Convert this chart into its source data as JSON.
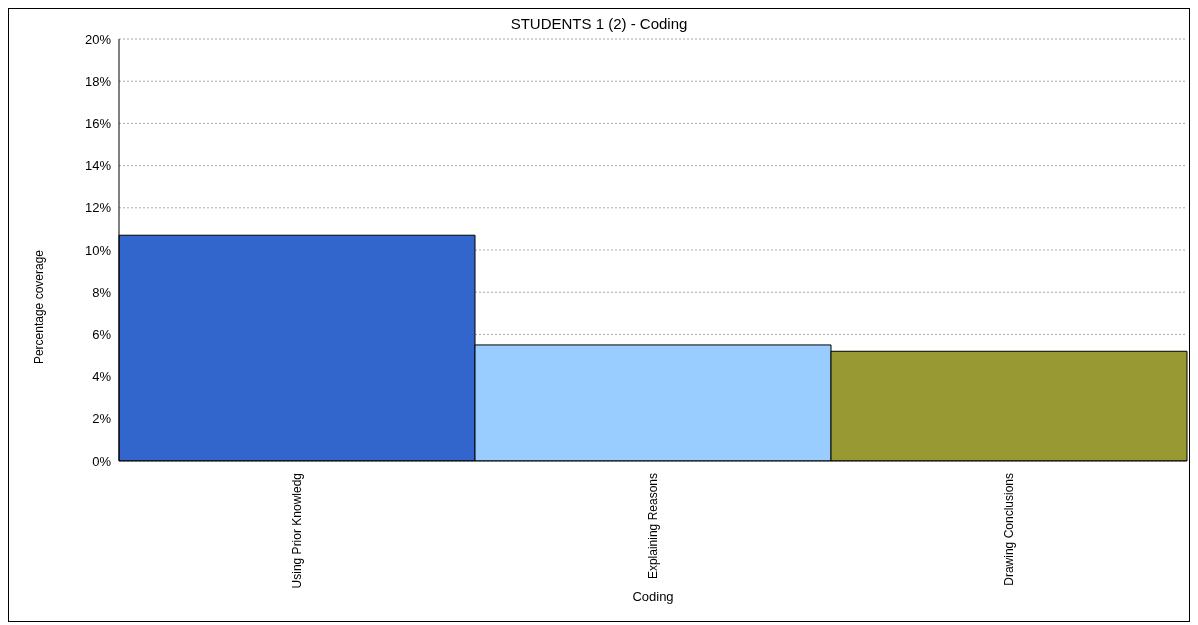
{
  "chart_data": {
    "type": "bar",
    "title": "STUDENTS 1 (2) - Coding",
    "xlabel": "Coding",
    "ylabel": "Percentage coverage",
    "categories": [
      "Using Prior Knowledg",
      "Explaining Reasons",
      "Drawing Conclusions"
    ],
    "values": [
      10.7,
      5.5,
      5.2
    ],
    "colors": [
      "#3366cc",
      "#99ccff",
      "#999933"
    ],
    "ylim": [
      0,
      20
    ],
    "yticks": [
      {
        "value": 0,
        "label": "0%"
      },
      {
        "value": 2,
        "label": "2%"
      },
      {
        "value": 4,
        "label": "4%"
      },
      {
        "value": 6,
        "label": "6%"
      },
      {
        "value": 8,
        "label": "8%"
      },
      {
        "value": 10,
        "label": "10%"
      },
      {
        "value": 12,
        "label": "12%"
      },
      {
        "value": 14,
        "label": "14%"
      },
      {
        "value": 16,
        "label": "16%"
      },
      {
        "value": 18,
        "label": "18%"
      },
      {
        "value": 20,
        "label": "20%"
      }
    ],
    "grid": "y",
    "legend": false
  }
}
